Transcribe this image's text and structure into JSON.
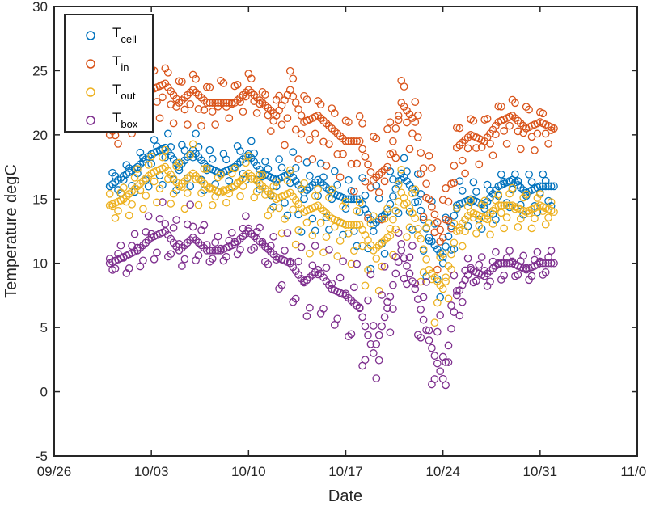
{
  "chart_data": {
    "type": "scatter",
    "xlabel": "Date",
    "ylabel": "Temperature degC",
    "xlim": [
      "09/26",
      "11/07"
    ],
    "ylim": [
      -5,
      30
    ],
    "x_ticks": [
      "09/26",
      "10/03",
      "10/10",
      "10/17",
      "10/24",
      "10/31",
      "11/07"
    ],
    "y_ticks": [
      -5,
      0,
      5,
      10,
      15,
      20,
      25,
      30
    ],
    "grid": false,
    "legend_position": "top-left",
    "marker": "open-circle",
    "x": [
      "09/30",
      "10/01",
      "10/02",
      "10/03",
      "10/04",
      "10/05",
      "10/06",
      "10/07",
      "10/08",
      "10/09",
      "10/10",
      "10/11",
      "10/12",
      "10/13",
      "10/14",
      "10/15",
      "10/16",
      "10/17",
      "10/18",
      "10/19",
      "10/20",
      "10/21",
      "10/22",
      "10/23",
      "10/24",
      "10/25",
      "10/26",
      "10/27",
      "10/28",
      "10/29",
      "10/30",
      "10/31",
      "11/01"
    ],
    "series": [
      {
        "name": "T",
        "sub": "cell",
        "color": "#0072BD",
        "values": [
          16.0,
          16.8,
          17.5,
          18.5,
          19.0,
          17.5,
          18.8,
          17.5,
          17.0,
          17.5,
          18.5,
          17.0,
          16.5,
          17.0,
          15.5,
          16.5,
          15.5,
          15.0,
          15.0,
          13.0,
          14.0,
          17.0,
          15.5,
          12.0,
          10.5,
          14.5,
          15.0,
          14.5,
          16.0,
          16.5,
          15.5,
          16.0,
          16.0
        ],
        "min": [
          15.0,
          15.5,
          15.5,
          16.0,
          16.0,
          15.5,
          16.0,
          15.5,
          15.5,
          16.0,
          16.5,
          15.5,
          14.0,
          13.5,
          12.0,
          12.5,
          12.5,
          12.0,
          11.0,
          9.0,
          11.0,
          14.5,
          12.0,
          8.0,
          7.0,
          12.0,
          13.0,
          12.5,
          13.5,
          14.5,
          13.5,
          14.0,
          14.5
        ],
        "max": [
          17.0,
          17.5,
          18.5,
          19.5,
          20.5,
          19.0,
          20.5,
          19.0,
          18.5,
          19.0,
          20.0,
          18.0,
          18.0,
          19.0,
          18.0,
          18.0,
          17.5,
          16.5,
          17.0,
          16.0,
          17.0,
          18.5,
          17.5,
          15.5,
          13.0,
          16.5,
          16.5,
          16.0,
          17.0,
          17.0,
          17.0,
          17.0,
          17.0
        ]
      },
      {
        "name": "T",
        "sub": "in",
        "color": "#D95319",
        "values": [
          20.0,
          21.5,
          22.5,
          23.5,
          24.0,
          22.5,
          23.5,
          22.5,
          22.5,
          22.5,
          23.5,
          22.5,
          21.5,
          23.5,
          21.0,
          21.5,
          20.5,
          19.5,
          19.5,
          16.5,
          17.5,
          22.5,
          21.0,
          15.0,
          12.0,
          19.0,
          20.0,
          19.5,
          21.0,
          21.5,
          20.5,
          21.0,
          20.5
        ],
        "min": [
          19.0,
          19.5,
          20.5,
          21.0,
          21.5,
          20.5,
          21.0,
          20.5,
          21.0,
          21.5,
          22.0,
          21.5,
          19.5,
          19.0,
          17.5,
          18.5,
          17.0,
          16.5,
          15.0,
          12.5,
          14.0,
          21.0,
          17.5,
          11.0,
          8.5,
          15.5,
          18.0,
          17.5,
          19.0,
          19.5,
          18.5,
          19.0,
          19.5
        ],
        "max": [
          21.0,
          22.5,
          24.0,
          25.5,
          25.5,
          24.5,
          25.0,
          24.0,
          24.5,
          24.0,
          25.0,
          23.5,
          23.0,
          25.5,
          23.5,
          23.0,
          22.5,
          21.5,
          22.0,
          20.5,
          21.0,
          24.5,
          23.0,
          19.0,
          15.5,
          21.0,
          21.5,
          21.5,
          22.5,
          23.0,
          22.5,
          22.0,
          22.0
        ]
      },
      {
        "name": "T",
        "sub": "out",
        "color": "#EDB120",
        "values": [
          14.5,
          15.0,
          16.0,
          17.0,
          17.5,
          16.0,
          17.0,
          16.0,
          15.5,
          16.0,
          17.0,
          16.0,
          15.0,
          15.5,
          14.0,
          14.5,
          13.5,
          13.0,
          13.0,
          11.0,
          12.0,
          15.5,
          13.5,
          9.5,
          8.0,
          12.5,
          14.0,
          13.5,
          14.5,
          14.5,
          14.0,
          14.5,
          14.0
        ],
        "min": [
          13.5,
          13.5,
          14.0,
          14.5,
          15.0,
          14.0,
          14.5,
          14.5,
          14.5,
          15.0,
          15.5,
          14.5,
          12.5,
          12.0,
          10.5,
          11.0,
          10.5,
          10.5,
          9.0,
          7.0,
          9.0,
          13.0,
          10.5,
          5.5,
          5.0,
          10.5,
          12.5,
          12.0,
          12.5,
          13.0,
          12.5,
          13.0,
          13.0
        ],
        "max": [
          15.5,
          16.0,
          17.5,
          18.5,
          19.0,
          18.0,
          19.5,
          17.5,
          17.0,
          17.5,
          18.5,
          17.0,
          16.5,
          17.5,
          16.5,
          16.0,
          16.0,
          15.0,
          15.0,
          14.0,
          14.5,
          17.5,
          16.0,
          13.5,
          11.0,
          14.5,
          15.0,
          15.0,
          15.5,
          16.0,
          15.5,
          15.5,
          15.0
        ]
      },
      {
        "name": "T",
        "sub": "box",
        "color": "#7E2F8E",
        "values": [
          10.0,
          10.5,
          11.0,
          12.0,
          12.5,
          11.0,
          12.0,
          11.0,
          11.0,
          11.5,
          12.5,
          11.5,
          10.5,
          10.0,
          8.5,
          9.5,
          8.0,
          7.5,
          6.5,
          3.0,
          6.5,
          11.0,
          8.0,
          4.0,
          1.0,
          7.5,
          9.5,
          9.0,
          10.0,
          10.0,
          9.5,
          10.0,
          10.0
        ],
        "min": [
          9.5,
          9.0,
          9.5,
          10.0,
          10.5,
          9.5,
          10.0,
          10.0,
          10.0,
          10.5,
          11.0,
          10.5,
          8.0,
          7.0,
          5.5,
          6.0,
          5.0,
          4.5,
          2.0,
          0.0,
          3.0,
          9.5,
          5.0,
          0.5,
          -1.0,
          5.0,
          8.5,
          8.0,
          8.5,
          9.0,
          8.5,
          9.0,
          9.0
        ],
        "max": [
          11.0,
          11.5,
          12.5,
          14.0,
          15.0,
          13.0,
          15.0,
          12.5,
          12.0,
          12.5,
          14.0,
          12.5,
          12.0,
          12.5,
          11.0,
          11.5,
          11.0,
          10.0,
          10.0,
          9.0,
          10.0,
          13.0,
          11.0,
          8.0,
          5.5,
          10.0,
          10.5,
          10.5,
          11.0,
          11.0,
          10.5,
          11.0,
          11.0
        ]
      }
    ]
  }
}
